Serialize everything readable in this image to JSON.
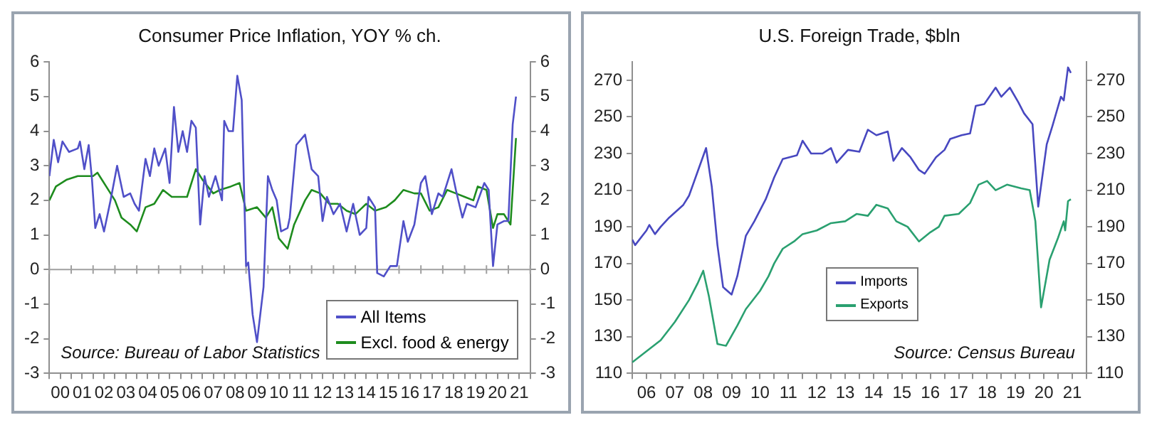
{
  "chart_data": [
    {
      "type": "line",
      "title": "Consumer Price Inflation, YOY % ch.",
      "xlim": [
        -0.5,
        21.5
      ],
      "ylim": [
        -3,
        6
      ],
      "yticks": [
        -3,
        -2,
        -1,
        0,
        1,
        2,
        3,
        4,
        5,
        6
      ],
      "y2lim": [
        -3,
        6
      ],
      "y2ticks": [
        -3,
        -2,
        -1,
        0,
        1,
        2,
        3,
        4,
        5,
        6
      ],
      "xticks": [
        {
          "value": -0.5,
          "label": null
        },
        {
          "value": 0,
          "label": "00"
        },
        {
          "value": 0.5,
          "label": null
        },
        {
          "value": 1,
          "label": "01"
        },
        {
          "value": 1.5,
          "label": null
        },
        {
          "value": 2,
          "label": "02"
        },
        {
          "value": 2.5,
          "label": null
        },
        {
          "value": 3,
          "label": "03"
        },
        {
          "value": 3.5,
          "label": null
        },
        {
          "value": 4,
          "label": "04"
        },
        {
          "value": 4.5,
          "label": null
        },
        {
          "value": 5,
          "label": "05"
        },
        {
          "value": 5.5,
          "label": null
        },
        {
          "value": 6,
          "label": "06"
        },
        {
          "value": 6.5,
          "label": null
        },
        {
          "value": 7,
          "label": "07"
        },
        {
          "value": 7.5,
          "label": null
        },
        {
          "value": 8,
          "label": "08"
        },
        {
          "value": 8.5,
          "label": null
        },
        {
          "value": 9,
          "label": "09"
        },
        {
          "value": 9.5,
          "label": null
        },
        {
          "value": 10,
          "label": "10"
        },
        {
          "value": 10.5,
          "label": null
        },
        {
          "value": 11,
          "label": "11"
        },
        {
          "value": 11.5,
          "label": null
        },
        {
          "value": 12,
          "label": "12"
        },
        {
          "value": 12.5,
          "label": null
        },
        {
          "value": 13,
          "label": "13"
        },
        {
          "value": 13.5,
          "label": null
        },
        {
          "value": 14,
          "label": "14"
        },
        {
          "value": 14.5,
          "label": null
        },
        {
          "value": 15,
          "label": "15"
        },
        {
          "value": 15.5,
          "label": null
        },
        {
          "value": 16,
          "label": "16"
        },
        {
          "value": 16.5,
          "label": null
        },
        {
          "value": 17,
          "label": "17"
        },
        {
          "value": 17.5,
          "label": null
        },
        {
          "value": 18,
          "label": "18"
        },
        {
          "value": 18.5,
          "label": null
        },
        {
          "value": 19,
          "label": "19"
        },
        {
          "value": 19.5,
          "label": null
        },
        {
          "value": 20,
          "label": "20"
        },
        {
          "value": 20.5,
          "label": null
        },
        {
          "value": 21,
          "label": "21"
        },
        {
          "value": 21.5,
          "label": null
        }
      ],
      "series": [
        {
          "name": "All Items",
          "color": "#5050c8",
          "x": [
            -0.5,
            -0.3,
            -0.1,
            0.1,
            0.4,
            0.8,
            0.9,
            1.1,
            1.3,
            1.45,
            1.6,
            1.8,
            2.0,
            2.3,
            2.6,
            2.9,
            3.2,
            3.4,
            3.6,
            3.9,
            4.1,
            4.3,
            4.5,
            4.8,
            5.0,
            5.2,
            5.4,
            5.6,
            5.8,
            6.0,
            6.2,
            6.4,
            6.6,
            6.8,
            7.1,
            7.4,
            7.5,
            7.7,
            7.9,
            8.1,
            8.3,
            8.5,
            8.6,
            8.8,
            9.0,
            9.3,
            9.5,
            9.7,
            9.9,
            10.1,
            10.4,
            10.5,
            10.8,
            11.2,
            11.5,
            11.8,
            12.0,
            12.2,
            12.5,
            12.8,
            13.1,
            13.4,
            13.7,
            14.0,
            14.1,
            14.4,
            14.5,
            14.8,
            15.1,
            15.4,
            15.7,
            15.9,
            16.2,
            16.5,
            16.7,
            17.0,
            17.3,
            17.5,
            17.9,
            18.1,
            18.4,
            18.6,
            19.0,
            19.4,
            19.6,
            19.8,
            20.0,
            20.3,
            20.5,
            20.7,
            20.85
          ],
          "values": [
            2.7,
            3.75,
            3.1,
            3.7,
            3.4,
            3.5,
            3.7,
            2.9,
            3.6,
            2.6,
            1.2,
            1.6,
            1.1,
            2.0,
            3.0,
            2.1,
            2.2,
            1.9,
            1.7,
            3.2,
            2.7,
            3.5,
            3.0,
            3.5,
            2.5,
            4.7,
            3.4,
            4.0,
            3.4,
            4.3,
            4.1,
            1.3,
            2.7,
            2.1,
            2.7,
            2.0,
            4.3,
            4.0,
            4.0,
            5.6,
            4.9,
            0.1,
            0.2,
            -1.3,
            -2.1,
            -0.5,
            2.7,
            2.3,
            2.0,
            1.1,
            1.2,
            1.5,
            3.6,
            3.9,
            2.9,
            2.7,
            1.4,
            2.1,
            1.6,
            1.9,
            1.1,
            1.9,
            1.0,
            1.2,
            2.1,
            1.8,
            -0.1,
            -0.2,
            0.1,
            0.1,
            1.4,
            0.8,
            1.3,
            2.5,
            2.7,
            1.6,
            2.2,
            2.1,
            2.9,
            2.3,
            1.5,
            1.9,
            1.8,
            2.5,
            2.3,
            0.1,
            1.3,
            1.4,
            1.4,
            4.2,
            5.0
          ]
        },
        {
          "name": "Excl. food & energy",
          "color": "#1e8c1e",
          "x": [
            -0.5,
            -0.2,
            0.3,
            0.8,
            1.5,
            1.7,
            2.1,
            2.5,
            2.8,
            3.2,
            3.5,
            3.9,
            4.3,
            4.7,
            5.1,
            5.5,
            5.8,
            6.2,
            6.5,
            7.0,
            7.3,
            7.8,
            8.2,
            8.5,
            9.0,
            9.4,
            9.7,
            10.0,
            10.4,
            10.7,
            11.2,
            11.5,
            11.9,
            12.3,
            12.7,
            13.1,
            13.5,
            14.0,
            14.4,
            14.9,
            15.3,
            15.7,
            16.2,
            16.5,
            16.9,
            17.3,
            17.7,
            18.1,
            18.5,
            18.9,
            19.1,
            19.5,
            19.8,
            20.0,
            20.3,
            20.6,
            20.85
          ],
          "values": [
            2.0,
            2.4,
            2.6,
            2.7,
            2.7,
            2.8,
            2.4,
            2.0,
            1.5,
            1.3,
            1.1,
            1.8,
            1.9,
            2.3,
            2.1,
            2.1,
            2.1,
            2.9,
            2.6,
            2.2,
            2.3,
            2.4,
            2.5,
            1.7,
            1.8,
            1.5,
            1.8,
            0.9,
            0.6,
            1.3,
            2.0,
            2.3,
            2.2,
            1.9,
            1.9,
            1.7,
            1.6,
            1.9,
            1.7,
            1.8,
            2.0,
            2.3,
            2.2,
            2.2,
            1.7,
            1.8,
            2.3,
            2.2,
            2.1,
            2.0,
            2.4,
            2.3,
            1.2,
            1.6,
            1.6,
            1.3,
            3.8
          ]
        }
      ],
      "ref_lines": [
        {
          "axis": "y",
          "value": 0,
          "color": "#a0a0a0"
        }
      ],
      "legend": "bottom right",
      "grid": false,
      "marker": "none",
      "line_style": "solid",
      "annotations": [
        "Source: Bureau of Labor Statistics"
      ]
    },
    {
      "type": "line",
      "title": "U.S. Foreign Trade, $bln",
      "xlim": [
        5.5,
        21.5
      ],
      "ylim": [
        110,
        280
      ],
      "yticks": [
        110,
        130,
        150,
        170,
        190,
        210,
        230,
        250,
        270
      ],
      "y2lim": [
        110,
        280
      ],
      "y2ticks": [
        110,
        130,
        150,
        170,
        190,
        210,
        230,
        250,
        270
      ],
      "xticks": [
        {
          "value": 5.5,
          "label": null
        },
        {
          "value": 6,
          "label": "06"
        },
        {
          "value": 6.5,
          "label": null
        },
        {
          "value": 7,
          "label": "07"
        },
        {
          "value": 7.5,
          "label": null
        },
        {
          "value": 8,
          "label": "08"
        },
        {
          "value": 8.5,
          "label": null
        },
        {
          "value": 9,
          "label": "09"
        },
        {
          "value": 9.5,
          "label": null
        },
        {
          "value": 10,
          "label": "10"
        },
        {
          "value": 10.5,
          "label": null
        },
        {
          "value": 11,
          "label": "11"
        },
        {
          "value": 11.5,
          "label": null
        },
        {
          "value": 12,
          "label": "12"
        },
        {
          "value": 12.5,
          "label": null
        },
        {
          "value": 13,
          "label": "13"
        },
        {
          "value": 13.5,
          "label": null
        },
        {
          "value": 14,
          "label": "14"
        },
        {
          "value": 14.5,
          "label": null
        },
        {
          "value": 15,
          "label": "15"
        },
        {
          "value": 15.5,
          "label": null
        },
        {
          "value": 16,
          "label": "16"
        },
        {
          "value": 16.5,
          "label": null
        },
        {
          "value": 17,
          "label": "17"
        },
        {
          "value": 17.5,
          "label": null
        },
        {
          "value": 18,
          "label": "18"
        },
        {
          "value": 18.5,
          "label": null
        },
        {
          "value": 19,
          "label": "19"
        },
        {
          "value": 19.5,
          "label": null
        },
        {
          "value": 20,
          "label": "20"
        },
        {
          "value": 20.5,
          "label": null
        },
        {
          "value": 21,
          "label": "21"
        },
        {
          "value": 21.5,
          "label": null
        }
      ],
      "series": [
        {
          "name": "Imports",
          "color": "#4848c0",
          "x": [
            5.5,
            5.6,
            6.0,
            6.1,
            6.3,
            6.5,
            6.8,
            7.3,
            7.5,
            7.8,
            8.1,
            8.3,
            8.5,
            8.7,
            9.0,
            9.2,
            9.5,
            9.8,
            10.2,
            10.5,
            10.8,
            11.3,
            11.5,
            11.8,
            12.2,
            12.5,
            12.7,
            13.1,
            13.5,
            13.8,
            14.1,
            14.5,
            14.7,
            15.0,
            15.3,
            15.6,
            15.8,
            16.2,
            16.5,
            16.7,
            17.1,
            17.4,
            17.6,
            17.9,
            18.3,
            18.5,
            18.8,
            19.1,
            19.3,
            19.6,
            19.8,
            20.1,
            20.3,
            20.6,
            20.7,
            20.85,
            20.95
          ],
          "values": [
            183,
            180,
            188,
            191,
            186,
            190,
            195,
            202,
            207,
            220,
            233,
            212,
            180,
            157,
            153,
            163,
            185,
            193,
            205,
            217,
            227,
            229,
            237,
            230,
            230,
            233,
            225,
            232,
            231,
            243,
            240,
            242,
            226,
            233,
            228,
            221,
            219,
            228,
            232,
            238,
            240,
            241,
            256,
            257,
            266,
            261,
            266,
            258,
            252,
            246,
            201,
            235,
            245,
            261,
            259,
            277,
            274
          ]
        },
        {
          "name": "Exports",
          "color": "#2aa070",
          "x": [
            5.5,
            6.0,
            6.5,
            7.0,
            7.5,
            7.8,
            8.0,
            8.2,
            8.5,
            8.8,
            9.2,
            9.5,
            10.0,
            10.3,
            10.5,
            10.8,
            11.2,
            11.5,
            12.0,
            12.5,
            13.0,
            13.4,
            13.8,
            14.1,
            14.5,
            14.8,
            15.2,
            15.6,
            16.0,
            16.3,
            16.5,
            17.0,
            17.4,
            17.7,
            18.0,
            18.3,
            18.7,
            19.2,
            19.5,
            19.7,
            19.9,
            20.2,
            20.5,
            20.7,
            20.75,
            20.85,
            20.95
          ],
          "values": [
            116,
            122,
            128,
            138,
            150,
            159,
            166,
            152,
            126,
            125,
            136,
            145,
            155,
            163,
            170,
            178,
            182,
            186,
            188,
            192,
            193,
            197,
            196,
            202,
            200,
            193,
            190,
            182,
            187,
            190,
            196,
            197,
            203,
            213,
            215,
            210,
            213,
            211,
            210,
            193,
            146,
            172,
            184,
            193,
            188,
            204,
            205
          ]
        }
      ],
      "legend": "bottom",
      "grid": false,
      "marker": "none",
      "line_style": "solid",
      "annotations": [
        "Source: Census Bureau"
      ]
    }
  ]
}
